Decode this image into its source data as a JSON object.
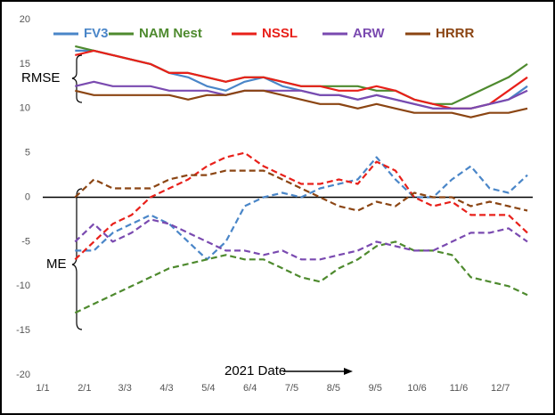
{
  "chart_data": {
    "type": "line",
    "x": [
      "1/25",
      "2/8",
      "2/22",
      "3/8",
      "3/22",
      "4/5",
      "4/19",
      "5/3",
      "5/17",
      "5/31",
      "6/14",
      "6/28",
      "7/12",
      "7/26",
      "8/9",
      "8/23",
      "9/6",
      "9/20",
      "10/4",
      "10/18",
      "11/1",
      "11/15",
      "11/29",
      "12/13",
      "12/27"
    ],
    "xlim": [
      "1/1",
      "12/31"
    ],
    "xticks": [
      "1/1",
      "2/1",
      "3/3",
      "4/3",
      "5/4",
      "6/4",
      "7/5",
      "8/5",
      "9/5",
      "10/6",
      "11/6",
      "12/7"
    ],
    "ylim": [
      -20,
      20
    ],
    "yticks": [
      20,
      15,
      10,
      5,
      0,
      -5,
      -10,
      -15,
      -20
    ],
    "xlabel": "2021 Date",
    "rmse_label": "RMSE",
    "me_label": "ME",
    "series": [
      {
        "name": "FV3",
        "color": "#4a86c8",
        "rmse": [
          16.5,
          16.5,
          16,
          15.5,
          15,
          14,
          13.5,
          12.5,
          12,
          13,
          13.5,
          12.5,
          12,
          11.5,
          11.5,
          11,
          11.5,
          11,
          10.5,
          10,
          10,
          10,
          10.5,
          11,
          12.5
        ],
        "me": [
          -6,
          -6,
          -4,
          -3,
          -2,
          -3,
          -5,
          -7,
          -5,
          -1,
          0,
          0.5,
          0,
          1,
          1.5,
          2,
          4.5,
          2,
          0,
          0,
          2,
          3.5,
          1,
          0.5,
          2.5
        ]
      },
      {
        "name": "NAM Nest",
        "color": "#4e8a2e",
        "rmse": [
          17,
          16.5,
          16,
          15.5,
          15,
          14,
          14,
          13.5,
          13,
          13.5,
          13.5,
          13,
          12.5,
          12.5,
          12.5,
          12.5,
          12,
          12,
          11,
          10.5,
          10.5,
          11.5,
          12.5,
          13.5,
          15
        ],
        "me": [
          -13,
          -12,
          -11,
          -10,
          -9,
          -8,
          -7.5,
          -7,
          -6.5,
          -7,
          -7,
          -8,
          -9,
          -9.5,
          -8,
          -7,
          -5.5,
          -5,
          -6,
          -6,
          -6.5,
          -9,
          -9.5,
          -10,
          -11
        ]
      },
      {
        "name": "NSSL",
        "color": "#e8201a",
        "rmse": [
          16,
          16.5,
          16,
          15.5,
          15,
          14,
          14,
          13.5,
          13,
          13.5,
          13.5,
          13,
          12.5,
          12.5,
          12,
          12,
          12.5,
          12,
          11,
          10.5,
          10,
          10,
          10.5,
          12,
          13.5
        ],
        "me": [
          -7,
          -5,
          -3,
          -2,
          0,
          1,
          2,
          3.5,
          4.5,
          5,
          3.5,
          2.5,
          1.5,
          1.5,
          2,
          1.5,
          4,
          3,
          0,
          -1,
          -0.5,
          -2,
          -2,
          -2,
          -4
        ]
      },
      {
        "name": "ARW",
        "color": "#7a4ab0",
        "rmse": [
          12.5,
          13,
          12.5,
          12.5,
          12.5,
          12,
          12,
          12,
          11.5,
          12,
          12,
          12,
          12,
          11.5,
          11.5,
          11,
          11.5,
          11,
          10.5,
          10,
          10,
          10,
          10.5,
          11,
          12
        ],
        "me": [
          -5,
          -3,
          -5,
          -4,
          -2.5,
          -3,
          -4,
          -5,
          -6,
          -6,
          -6.5,
          -6,
          -7,
          -7,
          -6.5,
          -6,
          -5,
          -5.5,
          -6,
          -6,
          -5,
          -4,
          -4,
          -3.5,
          -5
        ]
      },
      {
        "name": "HRRR",
        "color": "#8b4513",
        "rmse": [
          12,
          11.5,
          11.5,
          11.5,
          11.5,
          11.5,
          11,
          11.5,
          11.5,
          12,
          12,
          11.5,
          11,
          10.5,
          10.5,
          10,
          10.5,
          10,
          9.5,
          9.5,
          9.5,
          9,
          9.5,
          9.5,
          10
        ],
        "me": [
          0,
          2,
          1,
          1,
          1,
          2,
          2.5,
          2.5,
          3,
          3,
          3,
          2,
          1,
          0,
          -1,
          -1.5,
          -0.5,
          -1,
          0.5,
          0,
          0,
          -1,
          -0.5,
          -1,
          -1.5
        ]
      }
    ]
  }
}
